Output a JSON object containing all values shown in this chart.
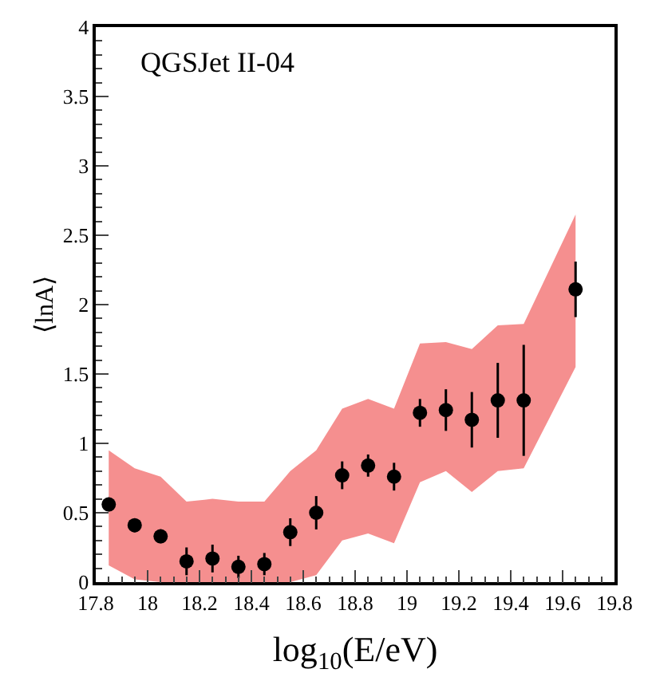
{
  "chart_data": {
    "type": "scatter",
    "xlabel": "log$_{10}$(E/eV)",
    "ylabel": "⟨lnA⟩",
    "annotations": [
      "QGSJet II-04"
    ],
    "x": [
      17.85,
      17.95,
      18.05,
      18.15,
      18.25,
      18.35,
      18.45,
      18.55,
      18.65,
      18.75,
      18.85,
      18.95,
      19.05,
      19.15,
      19.25,
      19.35,
      19.45,
      19.65
    ],
    "series": [
      {
        "color": "#f58f8f",
        "values": [
          null,
          null,
          null,
          null,
          null,
          null,
          null,
          null,
          null,
          null,
          null,
          null,
          null,
          null,
          null,
          null,
          null,
          null
        ],
        "lower": [
          0.12,
          0.02,
          0.0,
          0.0,
          0.0,
          0.0,
          0.0,
          0.0,
          0.05,
          0.3,
          0.35,
          0.28,
          0.72,
          0.8,
          0.65,
          0.8,
          0.82,
          1.55
        ],
        "upper": [
          0.95,
          0.82,
          0.76,
          0.58,
          0.6,
          0.58,
          0.58,
          0.8,
          0.95,
          1.25,
          1.32,
          1.25,
          1.72,
          1.73,
          1.68,
          1.85,
          1.86,
          2.65
        ]
      },
      {
        "color": "#000000",
        "values": [
          0.56,
          0.41,
          0.33,
          0.15,
          0.17,
          0.11,
          0.13,
          0.36,
          0.5,
          0.77,
          0.84,
          0.76,
          1.22,
          1.24,
          1.17,
          1.31,
          1.31,
          2.11
        ],
        "errors": [
          0.05,
          0.05,
          0.05,
          0.1,
          0.1,
          0.08,
          0.08,
          0.1,
          0.12,
          0.1,
          0.08,
          0.1,
          0.1,
          0.15,
          0.2,
          0.27,
          0.4,
          0.2
        ]
      }
    ],
    "marker": "circle",
    "xlim": [
      17.8,
      19.8
    ],
    "xticks": [
      17.8,
      18,
      18.2,
      18.4,
      18.6,
      18.8,
      19,
      19.2,
      19.4,
      19.6,
      19.8
    ],
    "ylim": [
      0,
      4
    ],
    "yticks": [
      0,
      0.5,
      1,
      1.5,
      2,
      2.5,
      3,
      3.5,
      4
    ]
  }
}
